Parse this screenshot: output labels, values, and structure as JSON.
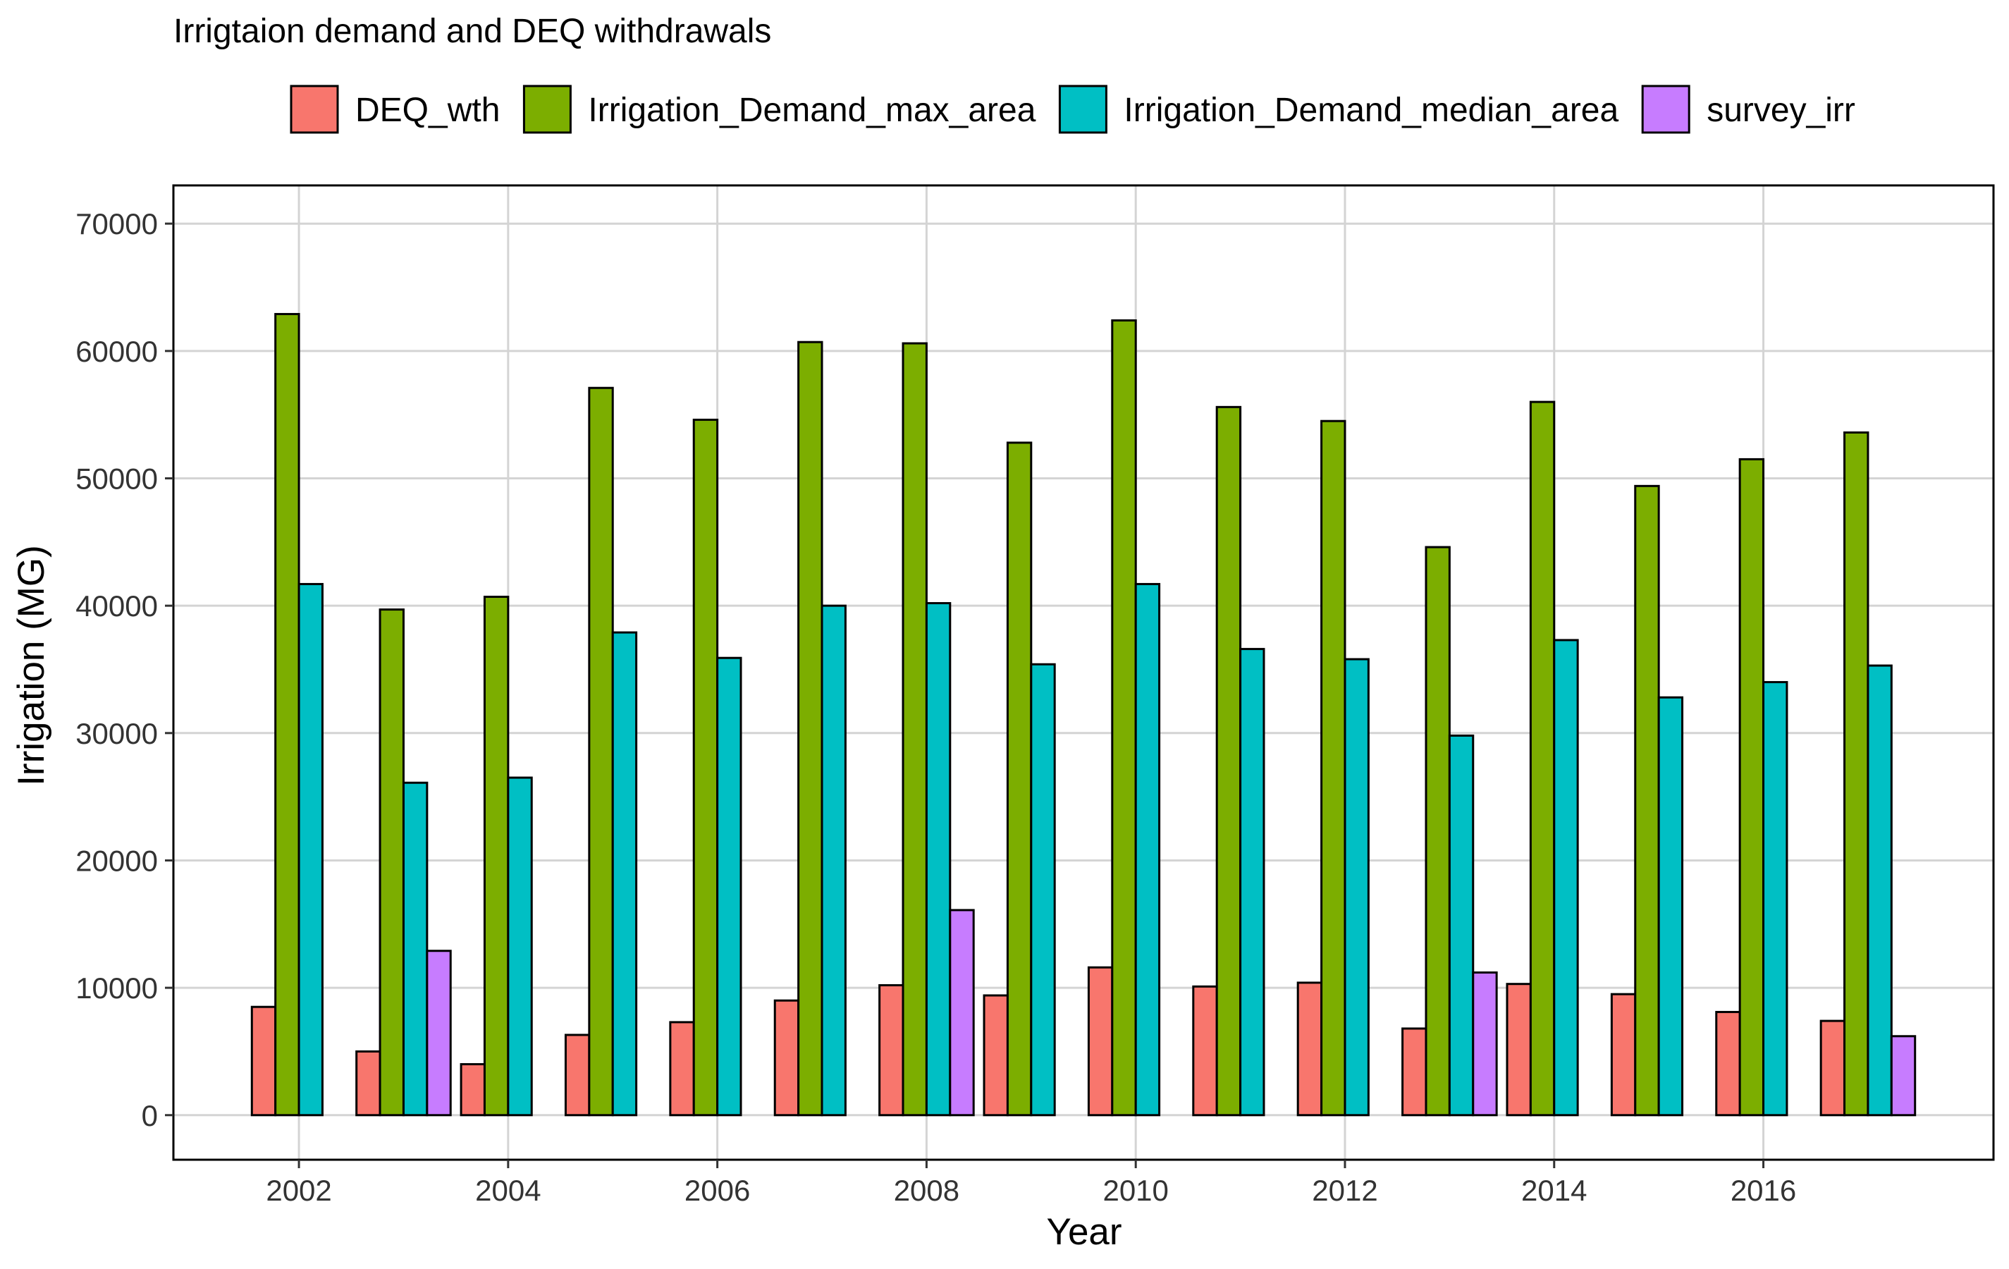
{
  "chart_data": {
    "type": "bar",
    "title": "Irrigtaion demand and DEQ withdrawals",
    "xlabel": "Year",
    "ylabel": "Irrigation (MG)",
    "x": [
      2002,
      2003,
      2004,
      2005,
      2006,
      2007,
      2008,
      2009,
      2010,
      2011,
      2012,
      2013,
      2014,
      2015,
      2016,
      2017
    ],
    "x_ticks": [
      2002,
      2004,
      2006,
      2008,
      2010,
      2012,
      2014,
      2016
    ],
    "xlim": [
      2000.8,
      2018.2
    ],
    "ylim": [
      -3500,
      73000
    ],
    "y_ticks": [
      0,
      10000,
      20000,
      30000,
      40000,
      50000,
      60000,
      70000
    ],
    "grid": true,
    "legend_position": "top",
    "series": [
      {
        "name": "DEQ_wth",
        "color": "#F8766D",
        "values": [
          8500,
          5000,
          4000,
          6300,
          7300,
          9000,
          10200,
          9400,
          11600,
          10100,
          10400,
          6800,
          10300,
          9500,
          8100,
          7400
        ]
      },
      {
        "name": "Irrigation_Demand_max_area",
        "color": "#7CAE00",
        "values": [
          62900,
          39700,
          40700,
          57100,
          54600,
          60700,
          60600,
          52800,
          62400,
          55600,
          54500,
          44600,
          56000,
          49400,
          51500,
          53600
        ]
      },
      {
        "name": "Irrigation_Demand_median_area",
        "color": "#00BFC4",
        "values": [
          41700,
          26100,
          26500,
          37900,
          35900,
          40000,
          40200,
          35400,
          41700,
          36600,
          35800,
          29800,
          37300,
          32800,
          34000,
          35300
        ]
      },
      {
        "name": "survey_irr",
        "color": "#C77CFF",
        "values": [
          0,
          12900,
          0,
          0,
          0,
          0,
          16100,
          0,
          0,
          0,
          0,
          11200,
          0,
          0,
          0,
          6200
        ]
      }
    ]
  }
}
